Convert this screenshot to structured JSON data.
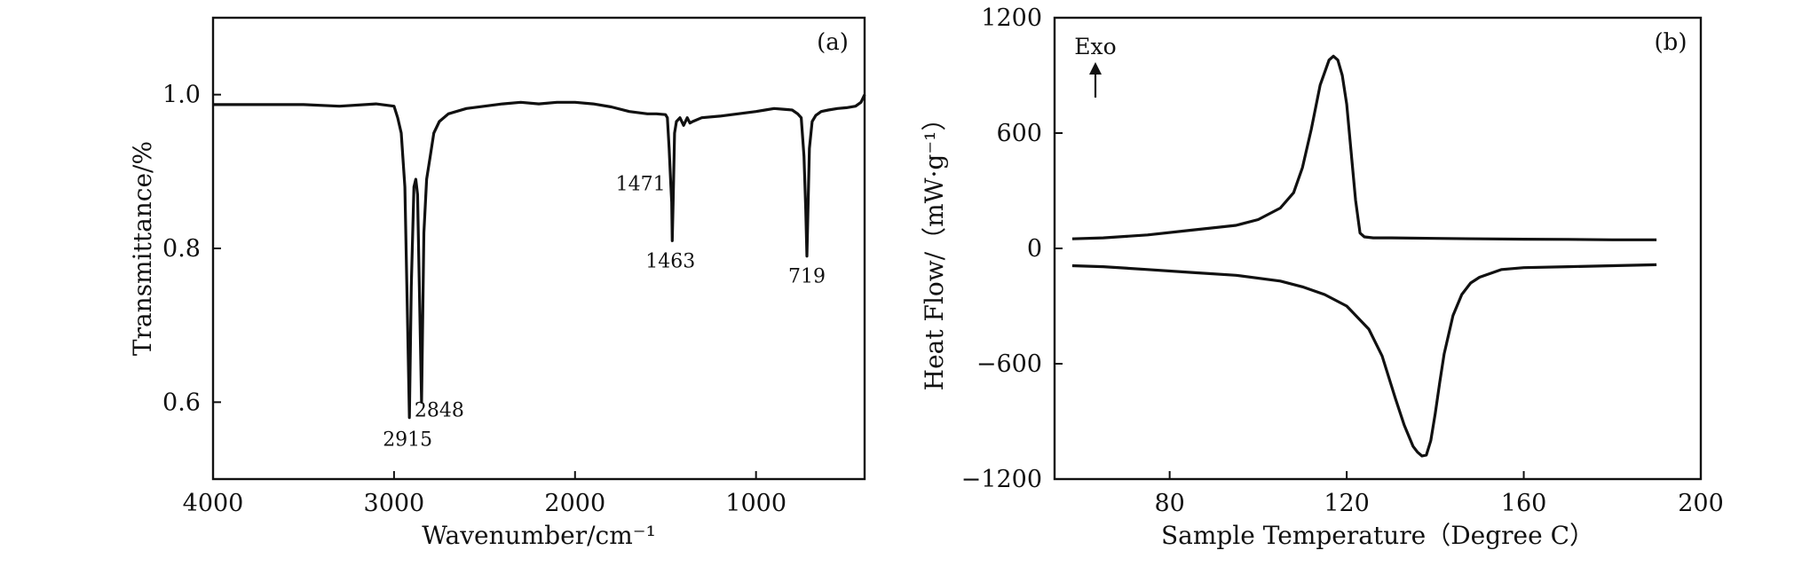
{
  "chart_data": [
    {
      "type": "line",
      "panel_label": "(a)",
      "xlabel": "Wavenumber/cm⁻¹",
      "ylabel": "Transmittance/%",
      "xlim": [
        4000,
        400
      ],
      "x_reversed": true,
      "ylim": [
        0.5,
        1.1
      ],
      "xticks": [
        4000,
        3000,
        2000,
        1000
      ],
      "yticks": [
        0.6,
        0.8,
        1.0
      ],
      "ytick_labels": [
        "0.6",
        "0.8",
        "1.0"
      ],
      "grid": false,
      "annotations": [
        {
          "text": "2915",
          "x": 2915,
          "y": 0.58
        },
        {
          "text": "2848",
          "x": 2848,
          "y": 0.6
        },
        {
          "text": "1471",
          "x": 1471,
          "y": 0.885
        },
        {
          "text": "1463",
          "x": 1463,
          "y": 0.81
        },
        {
          "text": "719",
          "x": 719,
          "y": 0.79
        }
      ],
      "series": [
        {
          "x": [
            4000,
            3700,
            3500,
            3300,
            3100,
            3000,
            2980,
            2960,
            2940,
            2925,
            2915,
            2905,
            2890,
            2880,
            2870,
            2860,
            2848,
            2835,
            2820,
            2800,
            2780,
            2750,
            2700,
            2600,
            2500,
            2400,
            2300,
            2200,
            2100,
            2000,
            1900,
            1800,
            1700,
            1600,
            1550,
            1500,
            1490,
            1480,
            1471,
            1466,
            1463,
            1458,
            1450,
            1440,
            1420,
            1400,
            1380,
            1365,
            1350,
            1300,
            1200,
            1100,
            1000,
            950,
            900,
            850,
            800,
            770,
            750,
            735,
            725,
            719,
            713,
            705,
            690,
            670,
            640,
            600,
            550,
            500,
            450,
            420,
            400
          ],
          "y": [
            0.987,
            0.987,
            0.987,
            0.985,
            0.988,
            0.985,
            0.97,
            0.95,
            0.88,
            0.7,
            0.58,
            0.75,
            0.88,
            0.89,
            0.87,
            0.75,
            0.6,
            0.82,
            0.89,
            0.92,
            0.95,
            0.965,
            0.975,
            0.982,
            0.985,
            0.988,
            0.99,
            0.988,
            0.99,
            0.99,
            0.988,
            0.984,
            0.978,
            0.975,
            0.975,
            0.974,
            0.97,
            0.93,
            0.885,
            0.86,
            0.81,
            0.86,
            0.95,
            0.965,
            0.97,
            0.96,
            0.97,
            0.963,
            0.965,
            0.97,
            0.972,
            0.975,
            0.978,
            0.98,
            0.982,
            0.981,
            0.98,
            0.975,
            0.97,
            0.92,
            0.85,
            0.79,
            0.85,
            0.93,
            0.965,
            0.973,
            0.978,
            0.98,
            0.982,
            0.983,
            0.985,
            0.99,
            1.0
          ]
        }
      ]
    },
    {
      "type": "line",
      "panel_label": "(b)",
      "xlabel": "Sample Temperature（Degree C）",
      "ylabel": "Heat Flow/（mW·g⁻¹）",
      "xlim": [
        54,
        200
      ],
      "ylim": [
        -1200,
        1200
      ],
      "xticks": [
        80,
        120,
        160,
        200
      ],
      "yticks": [
        -1200,
        -600,
        0,
        600,
        1200
      ],
      "ytick_labels": [
        "−1200",
        "−600",
        "0",
        "600",
        "1200"
      ],
      "grid": false,
      "annotations": [
        {
          "text": "Exo",
          "x": 62,
          "y": 1050
        }
      ],
      "series": [
        {
          "x": [
            58,
            65,
            75,
            85,
            95,
            100,
            105,
            108,
            110,
            112,
            114,
            116,
            117,
            118,
            119,
            120,
            121,
            122,
            123,
            124,
            126,
            130,
            140,
            150,
            160,
            170,
            180,
            190
          ],
          "y": [
            50,
            55,
            70,
            95,
            120,
            150,
            210,
            290,
            420,
            620,
            850,
            980,
            1000,
            980,
            900,
            750,
            500,
            250,
            80,
            60,
            55,
            55,
            52,
            50,
            48,
            47,
            45,
            45
          ]
        },
        {
          "x": [
            58,
            65,
            75,
            85,
            95,
            105,
            110,
            115,
            120,
            125,
            128,
            131,
            133,
            135,
            136,
            137,
            138,
            139,
            140,
            141,
            142,
            144,
            146,
            148,
            150,
            155,
            160,
            170,
            180,
            190
          ],
          "y": [
            -90,
            -95,
            -110,
            -125,
            -140,
            -170,
            -200,
            -240,
            -300,
            -420,
            -560,
            -780,
            -920,
            -1030,
            -1060,
            -1080,
            -1075,
            -1000,
            -860,
            -700,
            -550,
            -350,
            -240,
            -180,
            -150,
            -110,
            -100,
            -95,
            -90,
            -85
          ]
        }
      ]
    }
  ]
}
